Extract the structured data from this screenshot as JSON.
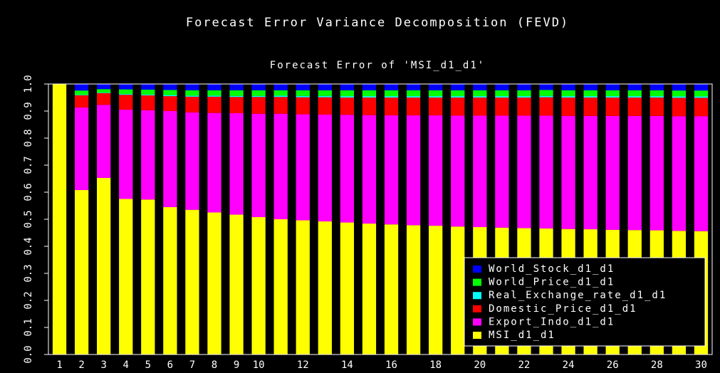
{
  "chart_data": {
    "type": "stacked_bar",
    "title": "Forecast Error Variance Decomposition (FEVD)",
    "subtitle": "Forecast Error of 'MSI_d1_d1'",
    "categories": [
      "1",
      "2",
      "3",
      "4",
      "5",
      "6",
      "7",
      "8",
      "9",
      "10",
      null,
      "12",
      null,
      "14",
      null,
      "16",
      null,
      "18",
      null,
      "20",
      null,
      "22",
      null,
      "24",
      null,
      "26",
      null,
      "28",
      null,
      "30"
    ],
    "ylim": [
      0,
      1
    ],
    "yticks": [
      {
        "value": 0,
        "label": "0.0"
      },
      0.1,
      0.2,
      0.3,
      0.4,
      0.5,
      0.6,
      0.7,
      0.8,
      0.9,
      {
        "value": 1,
        "label": "1.0"
      }
    ],
    "legend": "lower right",
    "series": [
      {
        "name": "MSI_d1_d1",
        "color": "#ffff00",
        "values": [
          1.0,
          0.608,
          0.653,
          0.575,
          0.573,
          0.545,
          0.535,
          0.525,
          0.517,
          0.508,
          0.5,
          0.496,
          0.492,
          0.488,
          0.484,
          0.481,
          0.478,
          0.476,
          0.473,
          0.471,
          0.469,
          0.467,
          0.466,
          0.464,
          0.463,
          0.461,
          0.46,
          0.459,
          0.457,
          0.456
        ]
      },
      {
        "name": "Export_Indo_d1_d1",
        "color": "#ff00ff",
        "values": [
          0,
          0.305,
          0.27,
          0.33,
          0.33,
          0.355,
          0.36,
          0.368,
          0.375,
          0.382,
          0.39,
          0.392,
          0.395,
          0.398,
          0.401,
          0.403,
          0.406,
          0.408,
          0.41,
          0.412,
          0.414,
          0.416,
          0.417,
          0.418,
          0.419,
          0.421,
          0.422,
          0.423,
          0.424,
          0.425
        ]
      },
      {
        "name": "Domestic_Price_d1_d1",
        "color": "#ff0000",
        "values": [
          0,
          0.045,
          0.043,
          0.055,
          0.055,
          0.055,
          0.058,
          0.06,
          0.06,
          0.062,
          0.062,
          0.063,
          0.064,
          0.064,
          0.065,
          0.066,
          0.066,
          0.066,
          0.067,
          0.067,
          0.067,
          0.067,
          0.068,
          0.068,
          0.068,
          0.068,
          0.068,
          0.068,
          0.068,
          0.068
        ]
      },
      {
        "name": "Real_Exchange_rate_d1_d1",
        "color": "#00ffff",
        "values": [
          0,
          0.002,
          0.002,
          0.003,
          0.003,
          0.004,
          0.004,
          0.004,
          0.004,
          0.004,
          0.005,
          0.005,
          0.005,
          0.005,
          0.005,
          0.005,
          0.005,
          0.005,
          0.005,
          0.005,
          0.005,
          0.005,
          0.005,
          0.005,
          0.005,
          0.005,
          0.005,
          0.005,
          0.005,
          0.005
        ]
      },
      {
        "name": "World_Price_d1_d1",
        "color": "#00ff00",
        "values": [
          0,
          0.016,
          0.013,
          0.017,
          0.018,
          0.019,
          0.02,
          0.02,
          0.021,
          0.021,
          0.02,
          0.021,
          0.021,
          0.022,
          0.022,
          0.022,
          0.022,
          0.022,
          0.022,
          0.022,
          0.022,
          0.022,
          0.022,
          0.022,
          0.022,
          0.022,
          0.022,
          0.022,
          0.022,
          0.022
        ]
      },
      {
        "name": "World_Stock_d1_d1",
        "color": "#0000ff",
        "values": [
          0,
          0.024,
          0.02,
          0.02,
          0.021,
          0.022,
          0.023,
          0.023,
          0.023,
          0.023,
          0.023,
          0.023,
          0.023,
          0.023,
          0.023,
          0.023,
          0.023,
          0.023,
          0.023,
          0.023,
          0.023,
          0.023,
          0.023,
          0.023,
          0.023,
          0.023,
          0.023,
          0.023,
          0.024,
          0.024
        ]
      }
    ]
  }
}
